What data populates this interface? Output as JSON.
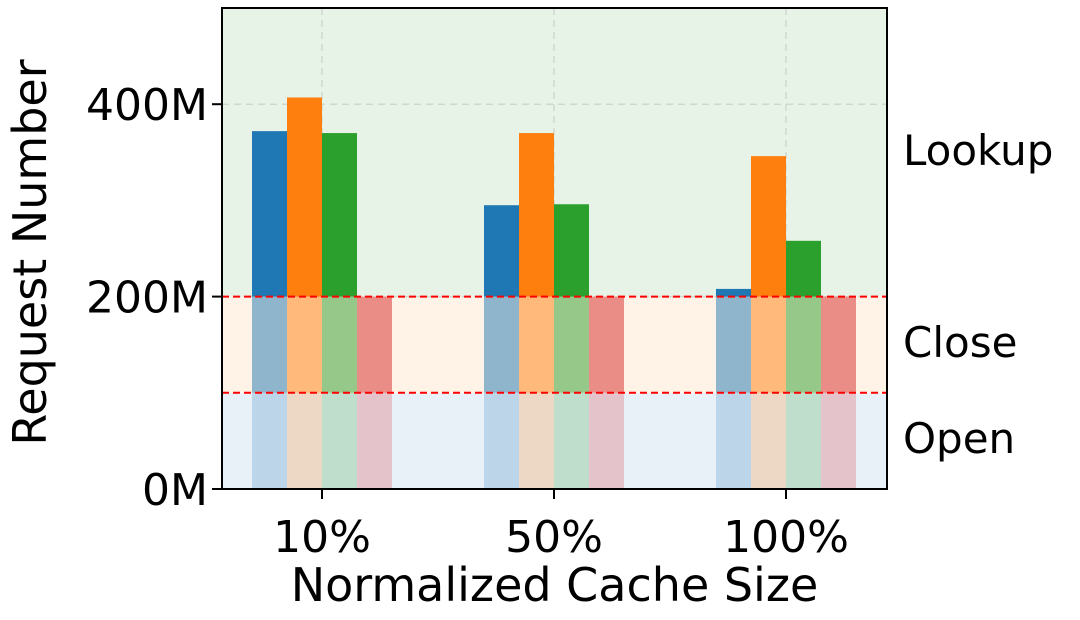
{
  "chart_data": {
    "type": "bar",
    "xlabel": "Normalized Cache Size",
    "ylabel": "Request Number",
    "categories": [
      "10%",
      "50%",
      "100%"
    ],
    "ylim": [
      0,
      500
    ],
    "unit": "M",
    "yticks": [
      {
        "value": 0,
        "label": "0M"
      },
      {
        "value": 200,
        "label": "200M"
      },
      {
        "value": 400,
        "label": "400M"
      }
    ],
    "grid": true,
    "series": [
      {
        "color": "#1f77b4",
        "values": [
          372,
          295,
          208
        ]
      },
      {
        "color": "#ff7f0e",
        "values": [
          407,
          370,
          346
        ]
      },
      {
        "color": "#2ca02c",
        "values": [
          370,
          296,
          258
        ]
      },
      {
        "color": "#d62728",
        "values": [
          200,
          200,
          200
        ]
      }
    ],
    "bands": [
      {
        "label": "Open",
        "from": 0,
        "to": 100,
        "color": "#e8f0f8"
      },
      {
        "label": "Close",
        "from": 100,
        "to": 200,
        "color": "#fff2e6"
      },
      {
        "label": "Lookup",
        "from": 200,
        "to": 500,
        "color": "#e8f3e8"
      }
    ],
    "thresholds": [
      100,
      200
    ],
    "threshold_color": "#ff0000"
  }
}
